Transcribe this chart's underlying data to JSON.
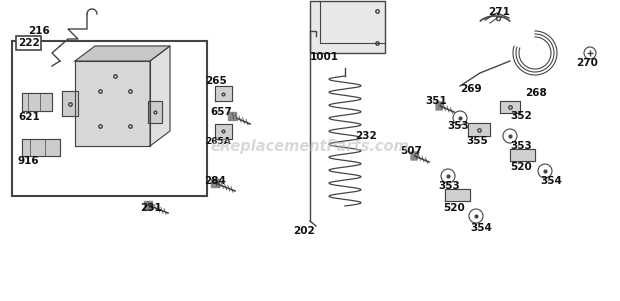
{
  "bg_color": "#ffffff",
  "watermark": "eReplacementParts.com",
  "watermark_color": "#bbbbbb",
  "watermark_alpha": 0.55,
  "label_color": "#111111",
  "line_color": "#444444",
  "label_fontsize": 7.5,
  "label_fontweight": "bold"
}
